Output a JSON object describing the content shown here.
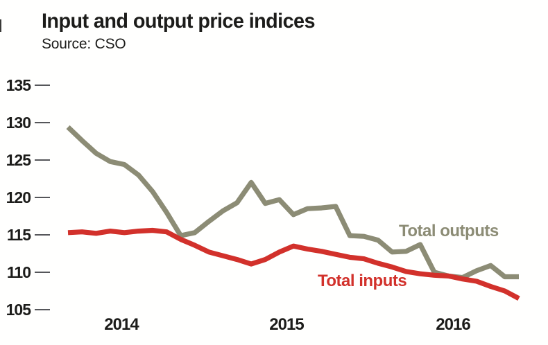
{
  "title": "Input and output price indices",
  "source": "Source: CSO",
  "colors": {
    "outputs_line": "#8c8c75",
    "inputs_line": "#d2312b",
    "axis_text": "#1c1c1a",
    "tick_dash": "#55565a",
    "background": "#fffffe"
  },
  "chart_data": {
    "type": "line",
    "title": "Input and output price indices",
    "subtitle": "Source: CSO",
    "xlabel": "",
    "ylabel": "",
    "x_tick_labels": [
      "2014",
      "2015",
      "2016"
    ],
    "y_ticks": [
      135,
      130,
      125,
      120,
      115,
      110,
      105
    ],
    "ylim": [
      105,
      135
    ],
    "grid": false,
    "legend_position": "inline-labels-on-lines",
    "x_span_note": "monthly points, Jan 2014 through late 2016",
    "series": [
      {
        "name": "Total outputs",
        "color": "#8c8c75",
        "values": [
          129.4,
          127.6,
          125.9,
          124.8,
          124.4,
          123.0,
          120.8,
          118.0,
          114.9,
          115.3,
          116.8,
          118.2,
          119.3,
          122.0,
          119.2,
          119.7,
          117.7,
          118.5,
          118.6,
          118.8,
          114.9,
          114.8,
          114.3,
          112.7,
          112.8,
          113.7,
          110.0,
          109.5,
          109.3,
          110.2,
          110.9,
          109.4,
          109.4
        ]
      },
      {
        "name": "Total inputs",
        "color": "#d2312b",
        "values": [
          115.3,
          115.4,
          115.2,
          115.5,
          115.3,
          115.5,
          115.6,
          115.4,
          114.4,
          113.6,
          112.7,
          112.2,
          111.7,
          111.1,
          111.7,
          112.7,
          113.5,
          113.1,
          112.8,
          112.4,
          112.0,
          111.8,
          111.2,
          110.7,
          110.1,
          109.8,
          109.6,
          109.5,
          109.1,
          108.8,
          108.1,
          107.5,
          106.5
        ]
      }
    ]
  }
}
